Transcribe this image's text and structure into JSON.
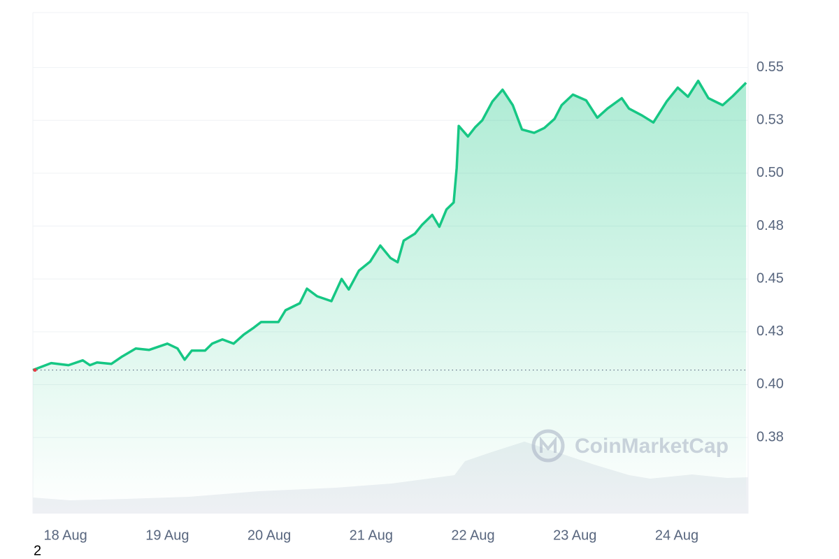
{
  "chart_data": {
    "type": "line",
    "watermark": "CoinMarketCap",
    "footnote": "2",
    "color": "#16c784",
    "x": [
      -0.32,
      -0.14,
      0.03,
      0.17,
      0.24,
      0.31,
      0.45,
      0.55,
      0.69,
      0.82,
      1.0,
      1.1,
      1.17,
      1.24,
      1.37,
      1.44,
      1.54,
      1.65,
      1.75,
      1.85,
      1.92,
      2.09,
      2.16,
      2.3,
      2.37,
      2.47,
      2.61,
      2.71,
      2.78,
      2.88,
      2.99,
      3.09,
      3.19,
      3.26,
      3.32,
      3.43,
      3.5,
      3.6,
      3.67,
      3.74,
      3.81,
      3.84,
      3.86,
      3.95,
      4.02,
      4.09,
      4.19,
      4.29,
      4.39,
      4.48,
      4.6,
      4.7,
      4.8,
      4.87,
      4.98,
      5.11,
      5.22,
      5.32,
      5.46,
      5.53,
      5.66,
      5.77,
      5.9,
      6.01,
      6.11,
      6.21,
      6.31,
      6.45,
      6.55,
      6.68
    ],
    "series": [
      {
        "color": "#16c784",
        "values": [
          0.4069,
          0.4102,
          0.4092,
          0.4115,
          0.4092,
          0.4105,
          0.4098,
          0.4131,
          0.4171,
          0.4164,
          0.4194,
          0.4171,
          0.4118,
          0.4161,
          0.4161,
          0.4194,
          0.4214,
          0.4194,
          0.4237,
          0.427,
          0.4296,
          0.4296,
          0.4352,
          0.4385,
          0.4454,
          0.4418,
          0.4395,
          0.45,
          0.445,
          0.4539,
          0.4582,
          0.4658,
          0.4599,
          0.4579,
          0.4681,
          0.4714,
          0.4756,
          0.4803,
          0.4747,
          0.4829,
          0.4862,
          0.5026,
          0.5224,
          0.5174,
          0.5217,
          0.525,
          0.5339,
          0.5395,
          0.5322,
          0.5207,
          0.5191,
          0.5214,
          0.5257,
          0.5322,
          0.5372,
          0.5345,
          0.5263,
          0.5306,
          0.5355,
          0.5306,
          0.5273,
          0.524,
          0.5339,
          0.5405,
          0.5362,
          0.5437,
          0.5355,
          0.5322,
          0.5365,
          0.5428
        ]
      }
    ],
    "xlim": [
      -0.32,
      6.7
    ],
    "xticks": [
      {
        "value": 0,
        "label": "18 Aug"
      },
      {
        "value": 1,
        "label": "19 Aug"
      },
      {
        "value": 2,
        "label": "20 Aug"
      },
      {
        "value": 3,
        "label": "21 Aug"
      },
      {
        "value": 4,
        "label": "22 Aug"
      },
      {
        "value": 5,
        "label": "23 Aug"
      },
      {
        "value": 6,
        "label": "24 Aug"
      }
    ],
    "ylim": [
      0.339,
      0.576
    ],
    "yticks": [
      0.55,
      {
        "value": 0.525,
        "label": "0.53"
      },
      {
        "value": 0.5,
        "label": "0.50"
      },
      {
        "value": 0.475,
        "label": "0.48"
      },
      0.45,
      {
        "value": 0.425,
        "label": "0.43"
      },
      {
        "value": 0.4,
        "label": "0.40"
      },
      {
        "value": 0.375,
        "label": "0.38"
      }
    ],
    "grid": true
  }
}
